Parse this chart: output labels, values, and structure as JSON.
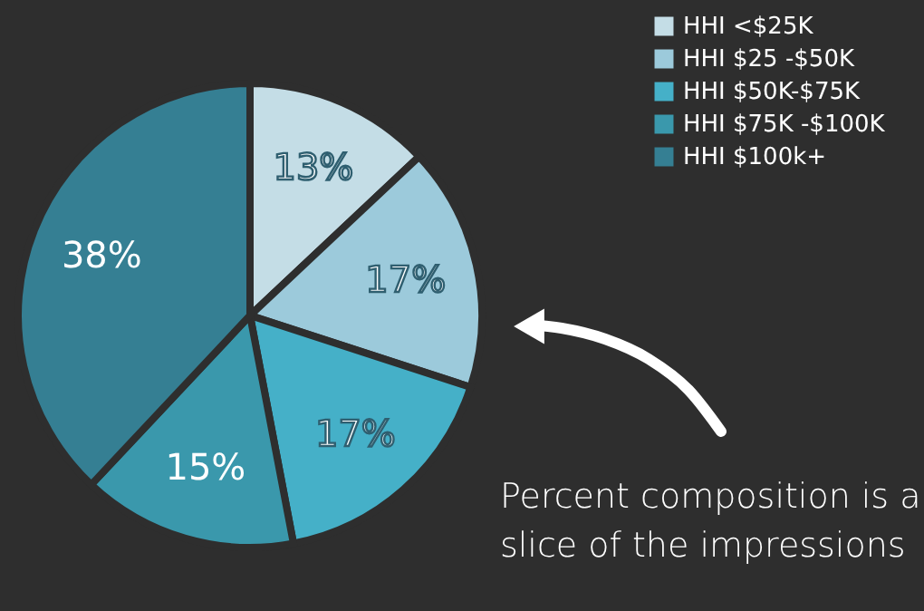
{
  "chart_data": {
    "type": "pie",
    "categories": [
      "HHI <$25K",
      "HHI $25 -$50K",
      "HHI $50K-$75K",
      "HHI $75K -$100K",
      "HHI $100k+"
    ],
    "values": [
      13,
      17,
      17,
      15,
      38
    ],
    "colors": [
      "#c4dde6",
      "#9ccadb",
      "#45b0c8",
      "#3a98ac",
      "#357f93"
    ],
    "value_labels": [
      "13%",
      "17%",
      "17%",
      "15%",
      "38%"
    ],
    "legend": "top right",
    "annotations": [
      "Percent composition is a\nslice of the impressions"
    ]
  }
}
